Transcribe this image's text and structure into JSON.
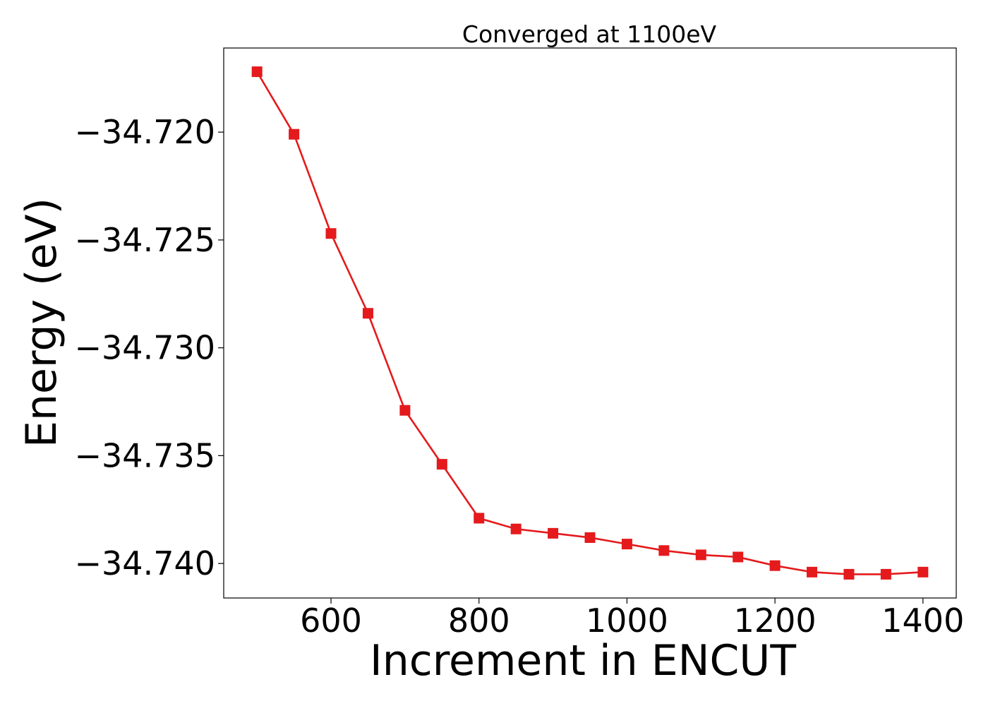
{
  "chart_data": {
    "type": "line",
    "title": "Converged at 1100eV",
    "xlabel": "Increment in ENCUT",
    "ylabel": "Energy (eV)",
    "xlim": [
      455,
      1445
    ],
    "ylim": [
      -34.7416,
      -34.7161
    ],
    "x_ticks": [
      600,
      800,
      1000,
      1200,
      1400
    ],
    "x_tick_labels": [
      "600",
      "800",
      "1000",
      "1200",
      "1400"
    ],
    "y_ticks": [
      -34.72,
      -34.725,
      -34.73,
      -34.735,
      -34.74
    ],
    "y_tick_labels": [
      "−34.720",
      "−34.725",
      "−34.730",
      "−34.735",
      "−34.740"
    ],
    "grid": false,
    "series": [
      {
        "color": "#e41a1c",
        "marker": "square",
        "x": [
          500,
          550,
          600,
          650,
          700,
          750,
          800,
          850,
          900,
          950,
          1000,
          1050,
          1100,
          1150,
          1200,
          1250,
          1300,
          1350,
          1400
        ],
        "values": [
          -34.7172,
          -34.7201,
          -34.7247,
          -34.7284,
          -34.7329,
          -34.7354,
          -34.7379,
          -34.7384,
          -34.7386,
          -34.7388,
          -34.7391,
          -34.7394,
          -34.7396,
          -34.7397,
          -34.7401,
          -34.7404,
          -34.7405,
          -34.7405,
          -34.7404
        ]
      }
    ]
  }
}
